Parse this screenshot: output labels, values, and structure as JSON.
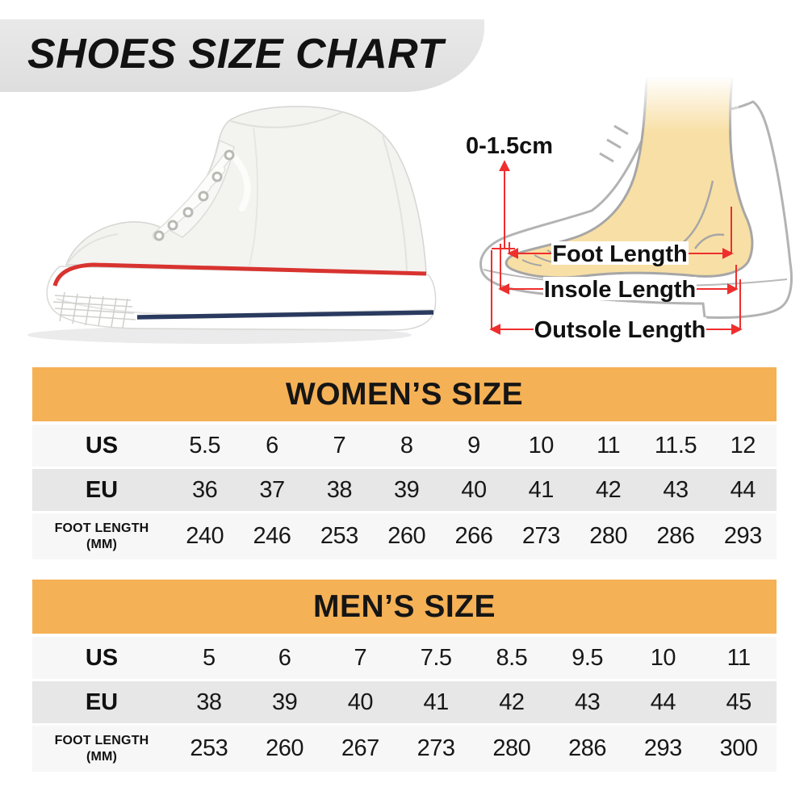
{
  "page_title": "SHOES SIZE CHART",
  "diagram": {
    "toe_gap_label": "0-1.5cm",
    "foot_length_label": "Foot Length",
    "insole_length_label": "Insole Length",
    "outsole_length_label": "Outsole Length"
  },
  "tables": [
    {
      "title": "WOMEN’S SIZE",
      "rows": [
        {
          "label": "US",
          "values": [
            "5.5",
            "6",
            "7",
            "8",
            "9",
            "10",
            "11",
            "11.5",
            "12"
          ]
        },
        {
          "label": "EU",
          "values": [
            "36",
            "37",
            "38",
            "39",
            "40",
            "41",
            "42",
            "43",
            "44"
          ]
        },
        {
          "label": "FOOT LENGTH",
          "unit": "(MM)",
          "values": [
            "240",
            "246",
            "253",
            "260",
            "266",
            "273",
            "280",
            "286",
            "293"
          ]
        }
      ]
    },
    {
      "title": "MEN’S SIZE",
      "rows": [
        {
          "label": "US",
          "values": [
            "5",
            "6",
            "7",
            "7.5",
            "8.5",
            "9.5",
            "10",
            "11"
          ]
        },
        {
          "label": "EU",
          "values": [
            "38",
            "39",
            "40",
            "41",
            "42",
            "43",
            "44",
            "45"
          ]
        },
        {
          "label": "FOOT LENGTH",
          "unit": "(MM)",
          "values": [
            "253",
            "260",
            "267",
            "273",
            "280",
            "286",
            "293",
            "300"
          ]
        }
      ]
    }
  ],
  "colors": {
    "banner_gray": "#e4e4e4",
    "table_header_orange": "#f5b156",
    "row_light": "#f7f7f7",
    "row_dark": "#e7e7e7",
    "arrow_red": "#ee2f2d",
    "sole_navy": "#2a3a5f",
    "sneaker_stripe_red": "#d8332f",
    "foot_skin": "#f8dfa5",
    "outline_gray": "#aaaaaa",
    "text_black": "#141414"
  },
  "chart_data": [
    {
      "type": "table",
      "title": "WOMEN’S SIZE",
      "row_labels": [
        "US",
        "EU",
        "FOOT LENGTH (MM)"
      ],
      "rows": [
        [
          "5.5",
          "6",
          "7",
          "8",
          "9",
          "10",
          "11",
          "11.5",
          "12"
        ],
        [
          "36",
          "37",
          "38",
          "39",
          "40",
          "41",
          "42",
          "43",
          "44"
        ],
        [
          "240",
          "246",
          "253",
          "260",
          "266",
          "273",
          "280",
          "286",
          "293"
        ]
      ]
    },
    {
      "type": "table",
      "title": "MEN’S SIZE",
      "row_labels": [
        "US",
        "EU",
        "FOOT LENGTH (MM)"
      ],
      "rows": [
        [
          "5",
          "6",
          "7",
          "7.5",
          "8.5",
          "9.5",
          "10",
          "11"
        ],
        [
          "38",
          "39",
          "40",
          "41",
          "42",
          "43",
          "44",
          "45"
        ],
        [
          "253",
          "260",
          "267",
          "273",
          "280",
          "286",
          "293",
          "300"
        ]
      ]
    }
  ]
}
